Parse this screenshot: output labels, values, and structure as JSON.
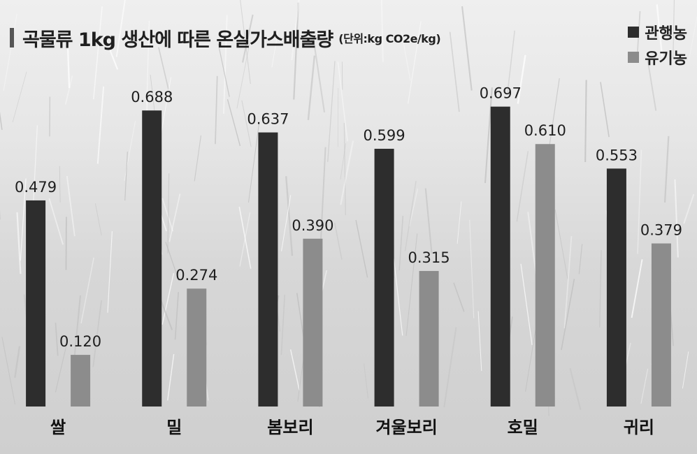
{
  "title": "곡물류 1kg 생산에 따른 온실가스배출량",
  "unit": "(단위:kg CO2e/kg)",
  "colors": {
    "conventional": "#2d2d2d",
    "organic": "#8c8c8c",
    "text": "#1e1e1e"
  },
  "chart_data": {
    "type": "bar",
    "title": "곡물류 1kg 생산에 따른 온실가스배출량",
    "subtitle": "(단위:kg CO2e/kg)",
    "xlabel": "",
    "ylabel": "",
    "categories": [
      "쌀",
      "밀",
      "봄보리",
      "겨울보리",
      "호밀",
      "귀리"
    ],
    "series": [
      {
        "name": "관행농",
        "values": [
          0.479,
          0.688,
          0.637,
          0.599,
          0.697,
          0.553
        ]
      },
      {
        "name": "유기농",
        "values": [
          0.12,
          0.274,
          0.39,
          0.315,
          0.61,
          0.379
        ]
      }
    ],
    "ylim": [
      0,
      0.75
    ],
    "grid": false,
    "legend": "top-right",
    "value_labels": true
  }
}
